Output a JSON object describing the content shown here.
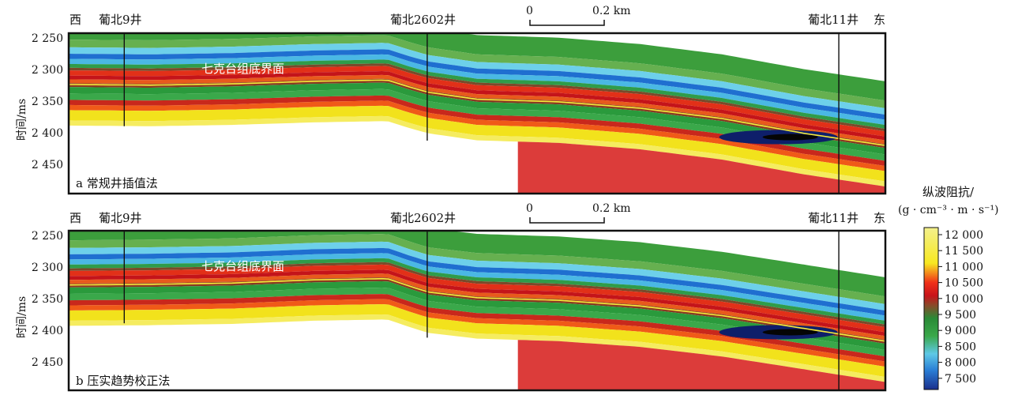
{
  "chart_data": [
    {
      "type": "heatmap",
      "panel_label": "a 常规井插值法",
      "direction_left": "西",
      "direction_right": "东",
      "wells": [
        {
          "name": "葡北9井",
          "x": 0.068
        },
        {
          "name": "葡北2602井",
          "x": 0.439
        },
        {
          "name": "葡北11井",
          "x": 0.943
        }
      ],
      "scale_bar": {
        "start_label": "0",
        "end_label": "0.2 km"
      },
      "ylabel": "时间/ms",
      "yticks": [
        "2 250",
        "2 300",
        "2 350",
        "2 400",
        "2 450"
      ],
      "ylim": [
        2245,
        2495
      ],
      "horizon": {
        "name": "七克台组底界面",
        "profile": [
          [
            0,
            2325
          ],
          [
            0.1,
            2326
          ],
          [
            0.2,
            2324
          ],
          [
            0.3,
            2320
          ],
          [
            0.39,
            2318
          ],
          [
            0.42,
            2330
          ],
          [
            0.44,
            2337
          ],
          [
            0.5,
            2348
          ],
          [
            0.6,
            2352
          ],
          [
            0.7,
            2362
          ],
          [
            0.8,
            2378
          ],
          [
            0.9,
            2401
          ],
          [
            1,
            2420
          ]
        ]
      }
    },
    {
      "type": "heatmap",
      "panel_label": "b 压实趋势校正法",
      "direction_left": "西",
      "direction_right": "东",
      "wells": [
        {
          "name": "葡北9井",
          "x": 0.068
        },
        {
          "name": "葡北2602井",
          "x": 0.439
        },
        {
          "name": "葡北11井",
          "x": 0.943
        }
      ],
      "scale_bar": {
        "start_label": "0",
        "end_label": "0.2 km"
      },
      "ylabel": "时间/ms",
      "yticks": [
        "2 250",
        "2 300",
        "2 350",
        "2 400",
        "2 450"
      ],
      "ylim": [
        2245,
        2495
      ],
      "horizon": {
        "name": "七克台组底界面",
        "profile": [
          [
            0,
            2330
          ],
          [
            0.1,
            2329
          ],
          [
            0.2,
            2327
          ],
          [
            0.3,
            2322
          ],
          [
            0.39,
            2320
          ],
          [
            0.42,
            2333
          ],
          [
            0.44,
            2341
          ],
          [
            0.5,
            2350
          ],
          [
            0.6,
            2354
          ],
          [
            0.7,
            2363
          ],
          [
            0.8,
            2378
          ],
          [
            0.9,
            2398
          ],
          [
            1,
            2418
          ]
        ]
      }
    }
  ],
  "colorbar": {
    "title_line1": "纵波阻抗/",
    "title_line2": "(g · cm⁻³ · m · s⁻¹)",
    "ticks": [
      "12 000",
      "11 500",
      "11 000",
      "10 500",
      "10 000",
      "9 500",
      "9 000",
      "8 500",
      "8 000",
      "7 500"
    ],
    "range": [
      7500,
      12000
    ],
    "colors": [
      "#1a2f8c",
      "#2a7fd6",
      "#5ec8e6",
      "#2aa048",
      "#3e9a3a",
      "#8a4a2a",
      "#c8141a",
      "#f03018",
      "#f7e820",
      "#f3f08c"
    ]
  }
}
